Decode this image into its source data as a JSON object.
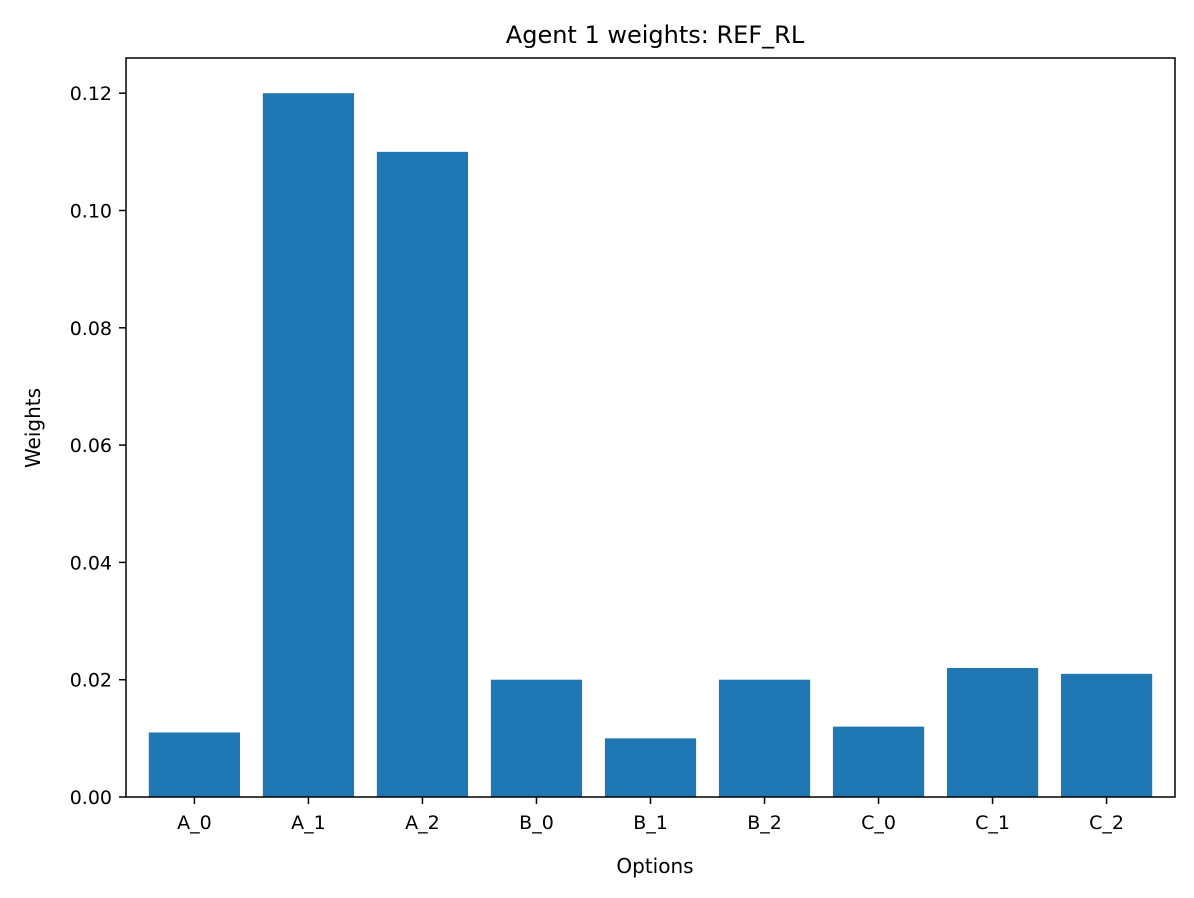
{
  "chart_data": {
    "type": "bar",
    "title": "Agent 1 weights: REF_RL",
    "xlabel": "Options",
    "ylabel": "Weights",
    "categories": [
      "A_0",
      "A_1",
      "A_2",
      "B_0",
      "B_1",
      "B_2",
      "C_0",
      "C_1",
      "C_2"
    ],
    "values": [
      0.011,
      0.12,
      0.11,
      0.02,
      0.01,
      0.02,
      0.012,
      0.022,
      0.021
    ],
    "ylim": [
      0,
      0.126
    ],
    "yticks": [
      0.0,
      0.02,
      0.04,
      0.06,
      0.08,
      0.1,
      0.12
    ],
    "ytick_labels": [
      "0.00",
      "0.02",
      "0.04",
      "0.06",
      "0.08",
      "0.10",
      "0.12"
    ],
    "bar_color": "#1f77b4",
    "grid": false,
    "legend": false
  }
}
